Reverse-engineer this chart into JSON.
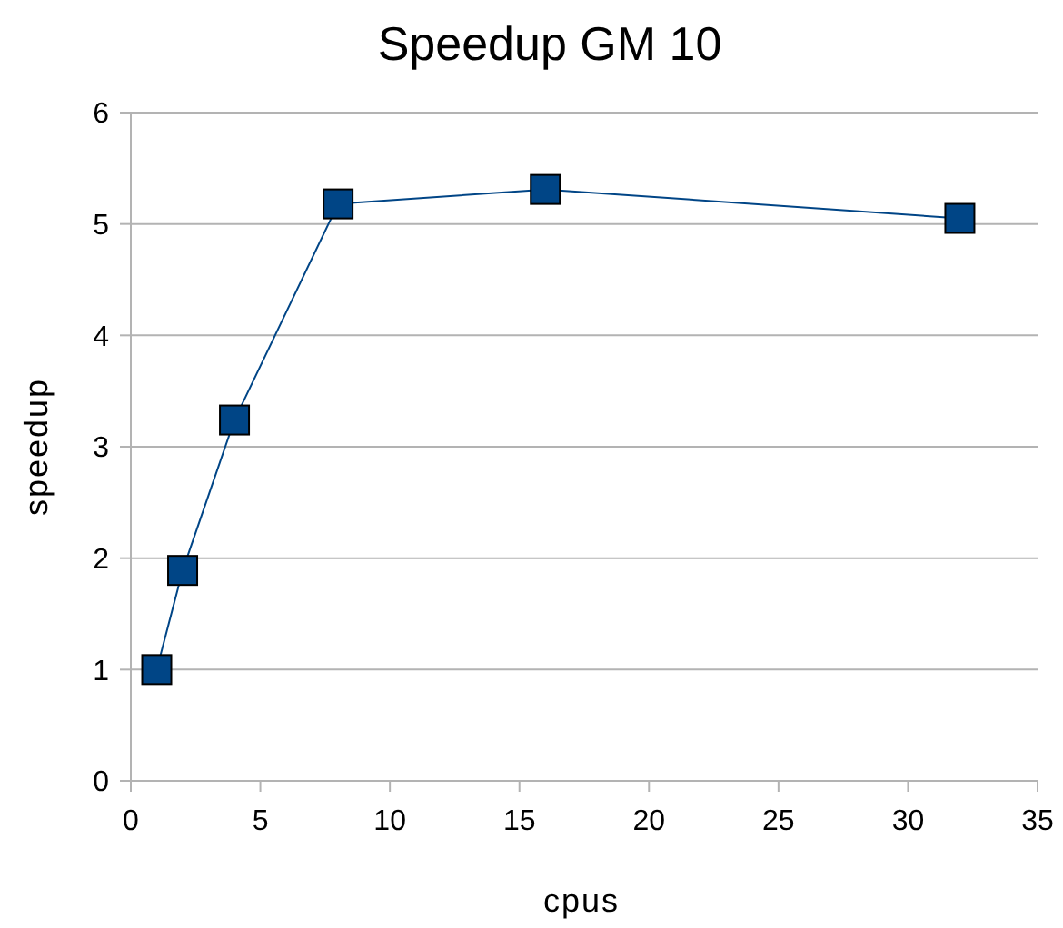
{
  "chart_data": {
    "type": "line",
    "title": "Speedup GM 10",
    "xlabel": "cpus",
    "ylabel": "speedup",
    "x": [
      1,
      2,
      4,
      8,
      16,
      32
    ],
    "series": [
      {
        "color": "#004586",
        "values": [
          1.0,
          1.89,
          3.24,
          5.18,
          5.31,
          5.05
        ]
      }
    ],
    "xlim": [
      0,
      35
    ],
    "xticks": [
      0,
      5,
      10,
      15,
      20,
      25,
      30,
      35
    ],
    "ylim": [
      0,
      6
    ],
    "yticks": [
      0,
      1,
      2,
      3,
      4,
      5,
      6
    ],
    "grid": "y",
    "marker": "square",
    "line_style": "solid"
  }
}
